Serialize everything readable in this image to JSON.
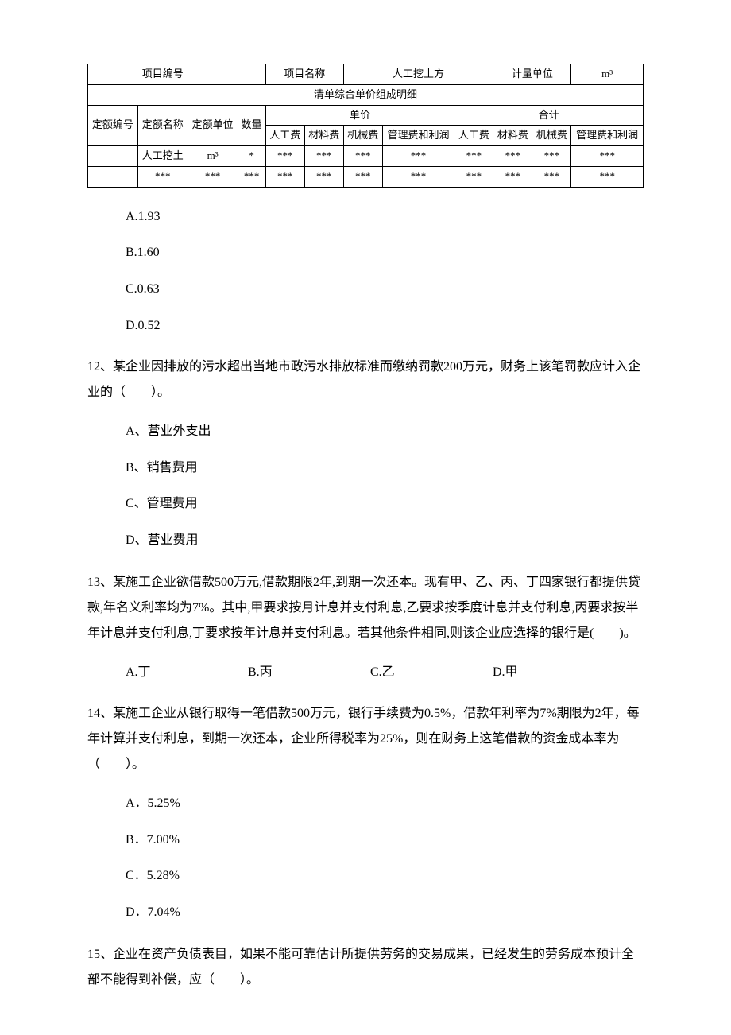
{
  "table": {
    "row1": {
      "c0": "项目编号",
      "c1": "",
      "c2": "项目名称",
      "c3": "人工挖土方",
      "c4": "计量单位",
      "c5": "m³"
    },
    "row2": "清单综合单价组成明细",
    "row3": {
      "c0": "定额编号",
      "c1": "定额名称",
      "c2": "定额单位",
      "c3": "数量",
      "c4": "单价",
      "c5": "合计"
    },
    "row4": {
      "c0": "人工费",
      "c1": "材料费",
      "c2": "机械费",
      "c3": "管理费和利润",
      "c4": "人工费",
      "c5": "材料费",
      "c6": "机械费",
      "c7": "管理费和利润"
    },
    "row5": {
      "c0": "",
      "c1": "人工挖土",
      "c2": "m³",
      "c3": "*",
      "c4": "***",
      "c5": "***",
      "c6": "***",
      "c7": "***",
      "c8": "***",
      "c9": "***",
      "c10": "***",
      "c11": "***"
    },
    "row6": {
      "c0": "",
      "c1": "***",
      "c2": "***",
      "c3": "***",
      "c4": "***",
      "c5": "***",
      "c6": "***",
      "c7": "***",
      "c8": "***",
      "c9": "***",
      "c10": "***",
      "c11": "***"
    }
  },
  "q11": {
    "optA": "A.1.93",
    "optB": "B.1.60",
    "optC": "C.0.63",
    "optD": "D.0.52"
  },
  "q12": {
    "text": "12、某企业因排放的污水超出当地市政污水排放标准而缴纳罚款200万元，财务上该笔罚款应计入企业的（　　）。",
    "optA": "A、营业外支出",
    "optB": "B、销售费用",
    "optC": "C、管理费用",
    "optD": "D、营业费用"
  },
  "q13": {
    "text": "13、某施工企业欲借款500万元,借款期限2年,到期一次还本。现有甲、乙、丙、丁四家银行都提供贷款,年名义利率均为7%。其中,甲要求按月计息并支付利息,乙要求按季度计息并支付利息,丙要求按半年计息并支付利息,丁要求按年计息并支付利息。若其他条件相同,则该企业应选择的银行是(　　)。",
    "optA": "A.丁",
    "optB": "B.丙",
    "optC": "C.乙",
    "optD": "D.甲"
  },
  "q14": {
    "text": "14、某施工企业从银行取得一笔借款500万元，银行手续费为0.5%，借款年利率为7%期限为2年，每年计算并支付利息，到期一次还本，企业所得税率为25%，则在财务上这笔借款的资金成本率为（　　）。",
    "optA": "A．5.25%",
    "optB": "B．7.00%",
    "optC": "C．5.28%",
    "optD": "D．7.04%"
  },
  "q15": {
    "text": "15、企业在资产负债表目，如果不能可靠估计所提供劳务的交易成果，已经发生的劳务成本预计全部不能得到补偿，应（　　）。"
  }
}
